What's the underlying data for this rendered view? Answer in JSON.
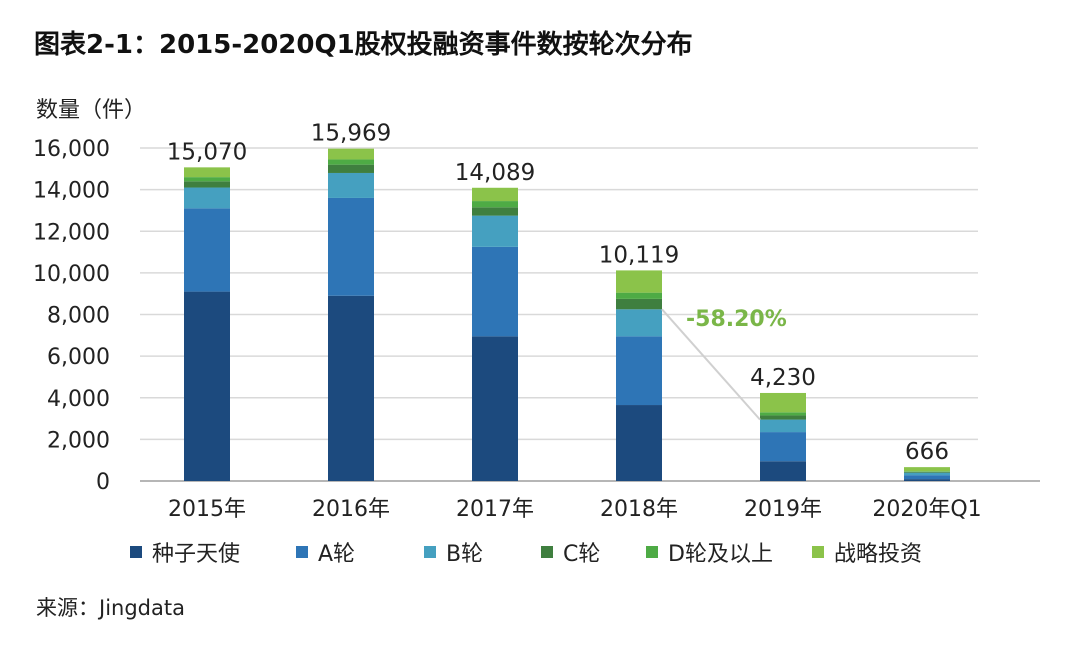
{
  "chart_data": {
    "type": "bar",
    "stacked": true,
    "title": "图表2-1：2015-2020Q1股权投融资事件数按轮次分布",
    "ylabel": "数量（件）",
    "xlabel": "",
    "ylim": [
      0,
      16000
    ],
    "yticks": [
      0,
      2000,
      4000,
      6000,
      8000,
      10000,
      12000,
      14000,
      16000
    ],
    "ytick_labels": [
      "0",
      "2,000",
      "4,000",
      "6,000",
      "8,000",
      "10,000",
      "12,000",
      "14,000",
      "16,000"
    ],
    "categories": [
      "2015年",
      "2016年",
      "2017年",
      "2018年",
      "2019年",
      "2020年Q1"
    ],
    "series": [
      {
        "name": "种子天使",
        "color": "#1c4a7e",
        "values": [
          9100,
          8900,
          6950,
          3650,
          950,
          90
        ]
      },
      {
        "name": "A轮",
        "color": "#2e75b6",
        "values": [
          4000,
          4700,
          4300,
          3300,
          1400,
          190
        ]
      },
      {
        "name": "B轮",
        "color": "#45a0c0",
        "values": [
          1000,
          1200,
          1500,
          1300,
          600,
          120
        ]
      },
      {
        "name": "C轮",
        "color": "#3f7f3f",
        "values": [
          300,
          400,
          400,
          500,
          200,
          40
        ]
      },
      {
        "name": "D轮及以上",
        "color": "#4eab45",
        "values": [
          200,
          250,
          300,
          300,
          150,
          30
        ]
      },
      {
        "name": "战略投资",
        "color": "#8bc34a",
        "values": [
          470,
          519,
          639,
          1069,
          930,
          196
        ]
      }
    ],
    "totals": [
      15070,
      15969,
      14089,
      10119,
      4230,
      666
    ],
    "total_labels": [
      "15,070",
      "15,969",
      "14,089",
      "10,119",
      "4,230",
      "666"
    ],
    "grid": true,
    "legend_position": "bottom",
    "annotation": {
      "text": "-58.20%",
      "color": "#7ab648",
      "from_category": "2018年",
      "to_category": "2019年"
    }
  },
  "source": "来源：Jingdata"
}
